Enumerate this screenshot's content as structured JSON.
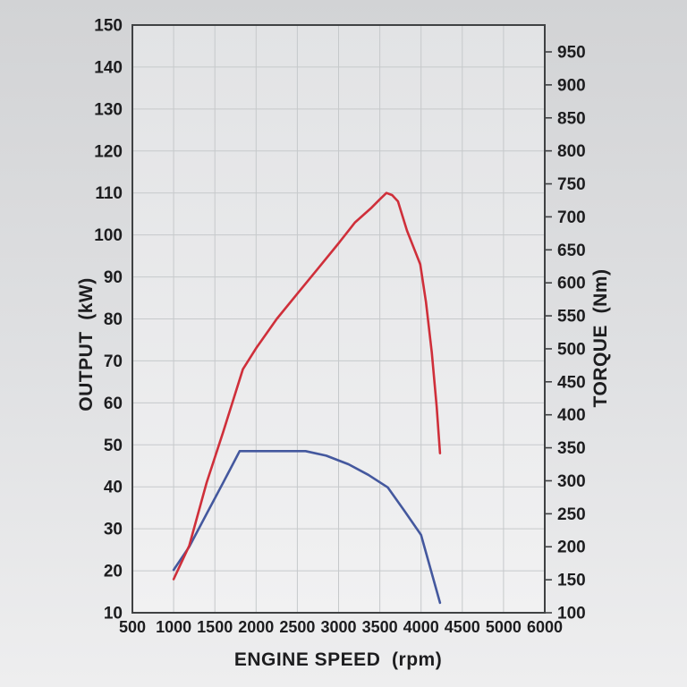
{
  "chart_data": {
    "type": "line",
    "title": "",
    "description": "Engine dyno chart: output power and torque versus engine speed",
    "grid": true,
    "legend": "none",
    "x_axis": {
      "label": "ENGINE SPEED  (rpm)",
      "unit": "rpm",
      "tick_labels": [
        "500",
        "1000",
        "1500",
        "2000",
        "2500",
        "3000",
        "3500",
        "4000",
        "4500",
        "5000",
        "6000"
      ],
      "note": "11 evenly spaced ticks; final interval jumps from 5000 to 6000"
    },
    "y_left_axis": {
      "label": "OUTPUT  (kW)",
      "unit": "kW",
      "min": 10,
      "max": 150,
      "tick_step": 10,
      "tick_labels": [
        "150",
        "140",
        "130",
        "120",
        "110",
        "100",
        "90",
        "80",
        "70",
        "60",
        "50",
        "40",
        "30",
        "20",
        "10"
      ]
    },
    "y_right_axis": {
      "label": "TORQUE  (Nm)",
      "unit": "Nm",
      "min": 100,
      "max": 950,
      "tick_step": 50,
      "tick_labels": [
        "950",
        "900",
        "850",
        "800",
        "750",
        "700",
        "650",
        "600",
        "550",
        "500",
        "450",
        "400",
        "350",
        "300",
        "250",
        "200",
        "150",
        "100"
      ]
    },
    "series": [
      {
        "name": "output",
        "axis": "left",
        "color": "#cf2f3a",
        "line_width": 2.6,
        "summary": "peak approx 110 kW near 3600 rpm, falls to 48 kW at 4230 rpm",
        "points": [
          [
            1000,
            18
          ],
          [
            1190,
            26
          ],
          [
            1400,
            41
          ],
          [
            1600,
            53
          ],
          [
            1840,
            68
          ],
          [
            2000,
            73
          ],
          [
            2250,
            80
          ],
          [
            2500,
            86
          ],
          [
            2750,
            92
          ],
          [
            3000,
            98
          ],
          [
            3200,
            103
          ],
          [
            3400,
            106.5
          ],
          [
            3500,
            108.5
          ],
          [
            3580,
            110
          ],
          [
            3650,
            109.5
          ],
          [
            3720,
            108
          ],
          [
            3830,
            101
          ],
          [
            3910,
            97
          ],
          [
            3990,
            93
          ],
          [
            4060,
            84
          ],
          [
            4130,
            72
          ],
          [
            4190,
            59
          ],
          [
            4230,
            48
          ]
        ]
      },
      {
        "name": "torque",
        "axis": "right",
        "color": "#44589e",
        "line_width": 2.6,
        "summary": "plateau approx 345 Nm from 1800 to 2600 rpm, falls to 115 Nm at 4230 rpm",
        "points": [
          [
            1000,
            165
          ],
          [
            1190,
            200
          ],
          [
            1400,
            250
          ],
          [
            1600,
            297
          ],
          [
            1800,
            345
          ],
          [
            2100,
            345
          ],
          [
            2400,
            345
          ],
          [
            2600,
            345
          ],
          [
            2850,
            338
          ],
          [
            3120,
            325
          ],
          [
            3360,
            309
          ],
          [
            3595,
            290
          ],
          [
            3800,
            254
          ],
          [
            4000,
            218
          ],
          [
            4230,
            115
          ]
        ]
      }
    ],
    "colors": {
      "frame": "#3f4143",
      "gridline": "#c6c9cb",
      "text": "#1d1d1f",
      "plot_bg_top": "#e2e3e5",
      "plot_bg_bottom": "#f1f1f2"
    }
  }
}
